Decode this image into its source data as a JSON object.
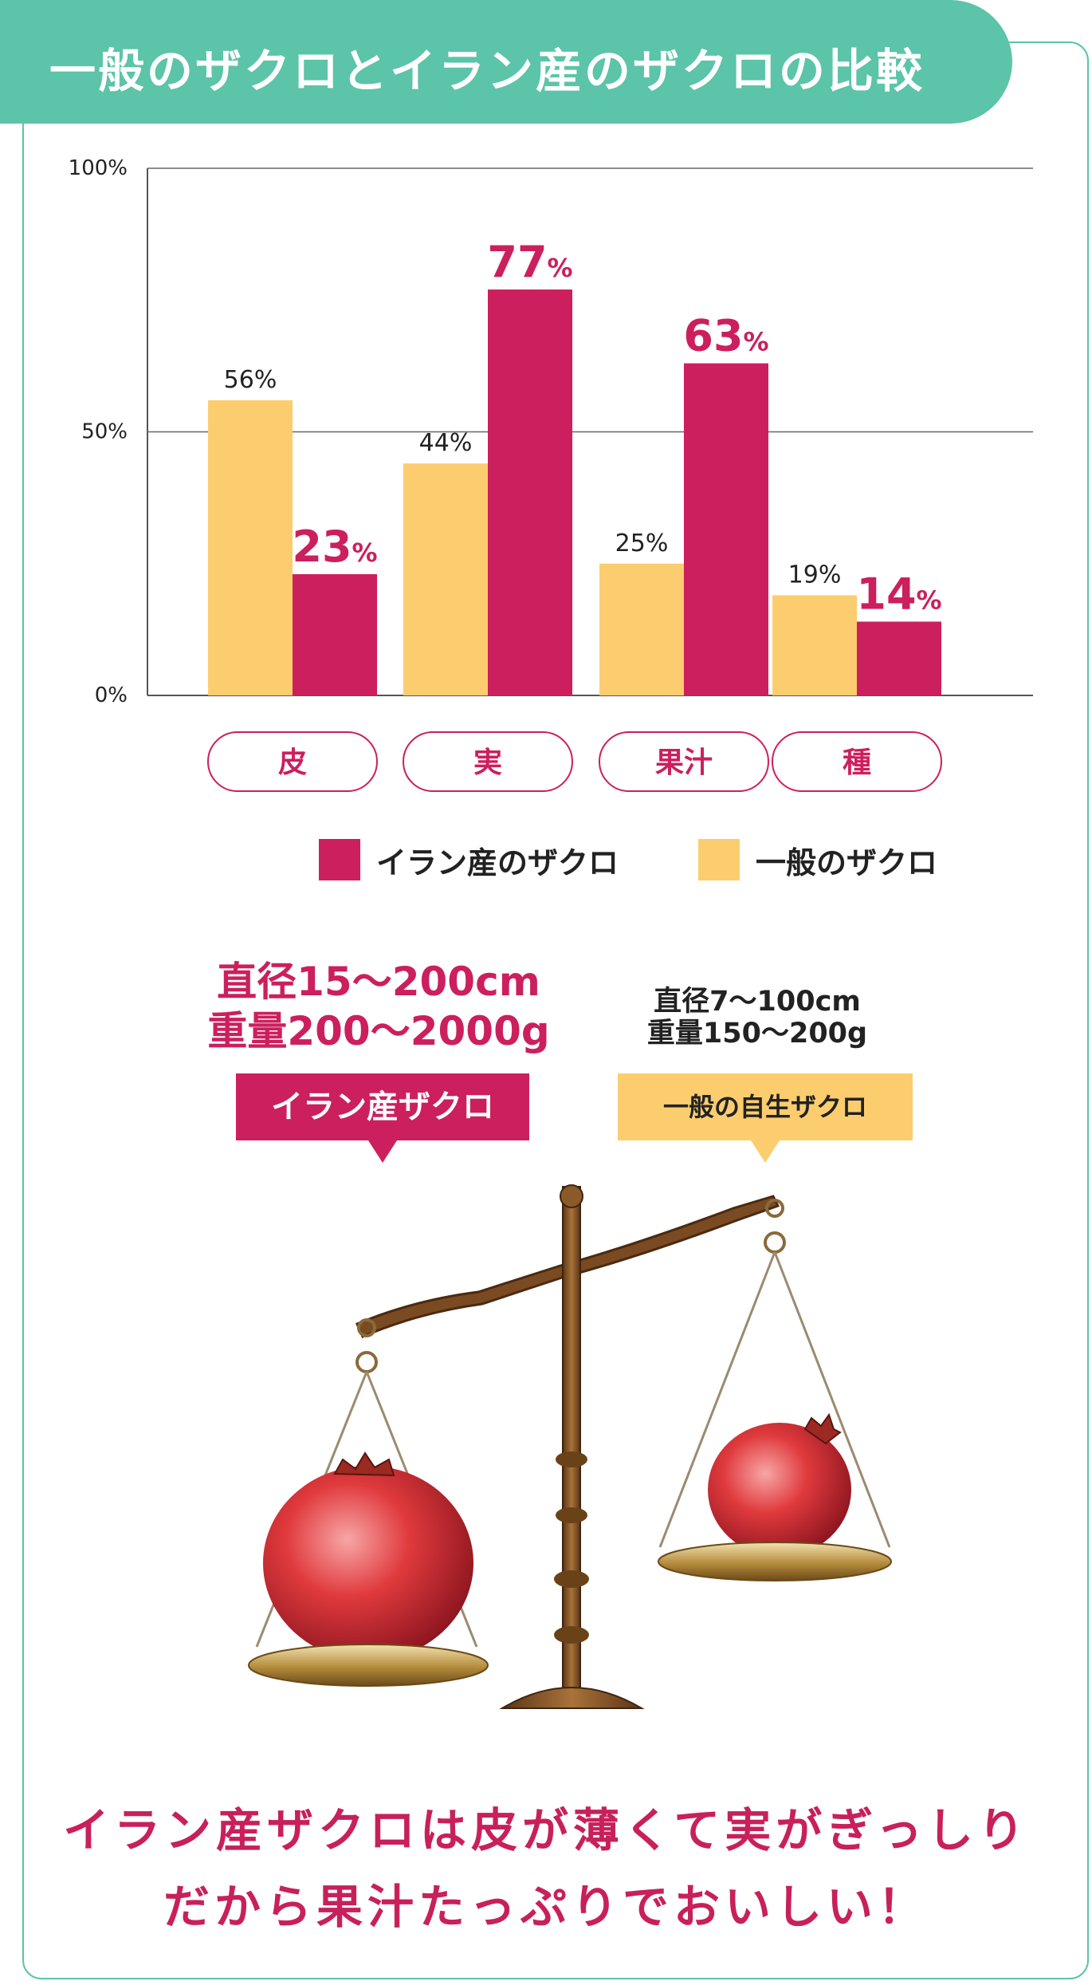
{
  "header": {
    "title": "一般のザクロとイラン産のザクロの比較"
  },
  "chart_data": {
    "type": "bar",
    "categories": [
      "皮",
      "実",
      "果汁",
      "種"
    ],
    "series": [
      {
        "name": "一般のザクロ",
        "color": "#fccd6f",
        "values": [
          56,
          44,
          25,
          19
        ]
      },
      {
        "name": "イラン産のザクロ",
        "color": "#cc1f5d",
        "values": [
          23,
          77,
          63,
          14
        ]
      }
    ],
    "ylim": [
      0,
      100
    ],
    "yticks": [
      {
        "value": 0,
        "label": "0%"
      },
      {
        "value": 50,
        "label": "50%"
      },
      {
        "value": 100,
        "label": "100%"
      }
    ],
    "gridlines": [
      50,
      100
    ],
    "unit": "%",
    "legend_position": "bottom"
  },
  "legend": {
    "iran": {
      "label": "イラン産のザクロ",
      "color": "#cc1f5d"
    },
    "general": {
      "label": "一般のザクロ",
      "color": "#fccd6f"
    }
  },
  "comparison": {
    "iran": {
      "line1": "直径15〜200cm",
      "line2": "重量200〜2000g",
      "tag": "イラン産ザクロ"
    },
    "general": {
      "line1": "直径7〜100cm",
      "line2": "重量150〜200g",
      "tag": "一般の自生ザクロ"
    }
  },
  "footer": {
    "line1": "イラン産ザクロは皮が薄くて実がぎっしり",
    "line2": "だから果汁たっぷりでおいしい！"
  },
  "colors": {
    "teal": "#5cc4a8",
    "magenta": "#cc1f5d",
    "yellow": "#fccd6f"
  }
}
